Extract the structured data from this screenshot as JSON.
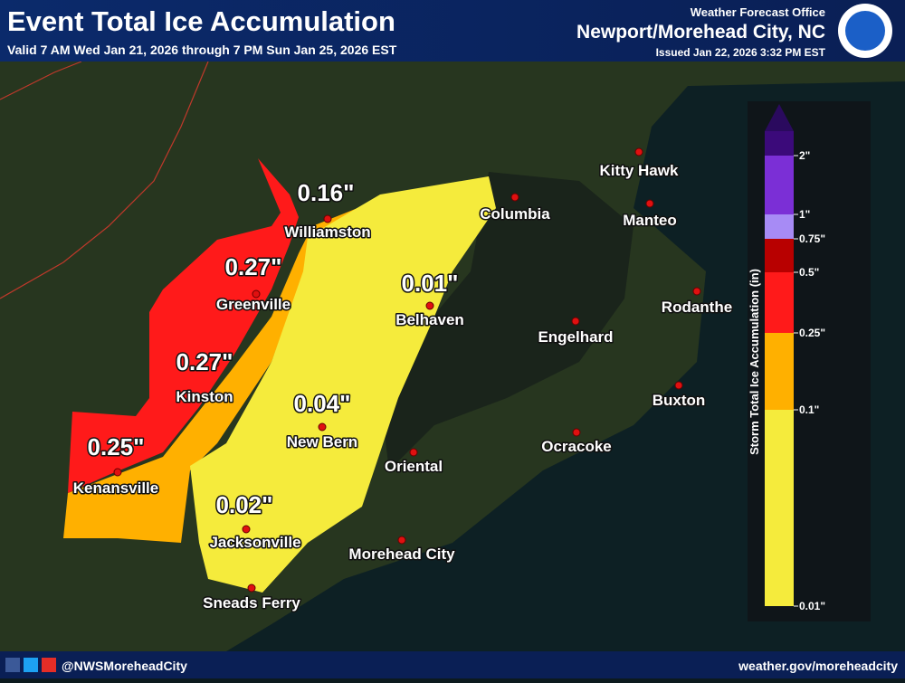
{
  "header": {
    "title": "Event Total Ice Accumulation",
    "subtitle": "Valid 7 AM Wed Jan 21, 2026 through 7 PM Sun Jan 25, 2026 EST",
    "office": "Weather Forecast Office",
    "office_name": "Newport/Morehead City, NC",
    "issued": "Issued Jan 22, 2026 3:32 PM EST"
  },
  "cities": [
    {
      "name": "Williamston",
      "amount": "0.16\""
    },
    {
      "name": "Greenville",
      "amount": "0.27\""
    },
    {
      "name": "Belhaven",
      "amount": "0.01\""
    },
    {
      "name": "Kinston",
      "amount": "0.27\""
    },
    {
      "name": "New Bern",
      "amount": "0.04\""
    },
    {
      "name": "Kenansville",
      "amount": "0.25\""
    },
    {
      "name": "Jacksonville",
      "amount": "0.02\""
    },
    {
      "name": "Sneads Ferry"
    },
    {
      "name": "Morehead City"
    },
    {
      "name": "Oriental"
    },
    {
      "name": "Ocracoke"
    },
    {
      "name": "Buxton"
    },
    {
      "name": "Engelhard"
    },
    {
      "name": "Rodanthe"
    },
    {
      "name": "Manteo"
    },
    {
      "name": "Kitty Hawk"
    },
    {
      "name": "Columbia"
    }
  ],
  "legend": {
    "title": "Storm Total Ice Accumulation (in)",
    "labels": [
      "2\"",
      "1\"",
      "0.75\"",
      "0.5\"",
      "0.25\"",
      "0.1\"",
      "0.01\""
    ]
  },
  "footer": {
    "handle": "@NWSMoreheadCity",
    "url": "weather.gov/moreheadcity"
  }
}
